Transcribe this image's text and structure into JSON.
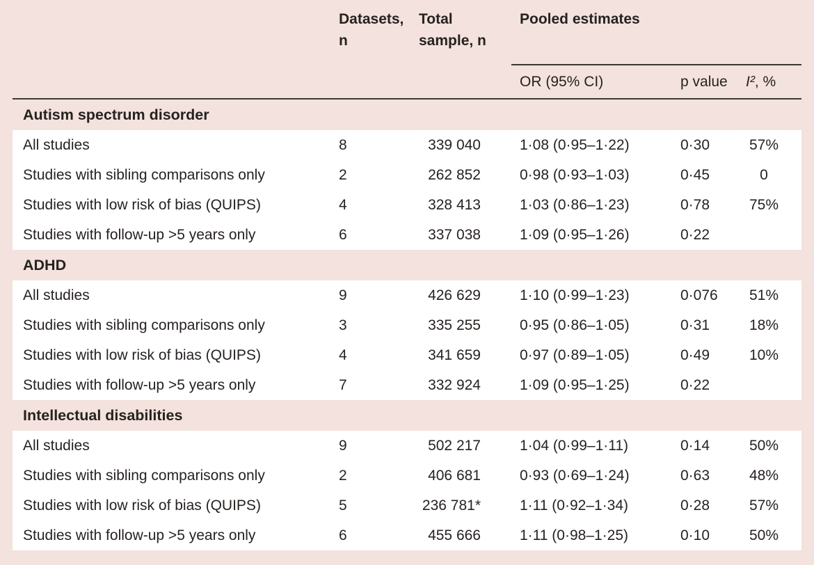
{
  "colors": {
    "page_background": "#f3e2dd",
    "row_background": "#ffffff",
    "text": "#262220",
    "rule": "#3b3734"
  },
  "header": {
    "datasets_label": "Datasets, n",
    "total_sample_label": "Total sample, n",
    "pooled_label": "Pooled estimates",
    "or_label": "OR (95% CI)",
    "p_label": "p value",
    "i2_label": "I²",
    "i2_suffix": ", %"
  },
  "table": {
    "sections": [
      {
        "title": "Autism spectrum disorder",
        "rows": [
          {
            "label": "All studies",
            "datasets": "8",
            "total": "339 040",
            "or": "1·08 (0·95–1·22)",
            "p": "0·30",
            "i2": "57%"
          },
          {
            "label": "Studies with sibling comparisons only",
            "datasets": "2",
            "total": "262 852",
            "or": "0·98 (0·93–1·03)",
            "p": "0·45",
            "i2": "0"
          },
          {
            "label": "Studies with low risk of bias (QUIPS)",
            "datasets": "4",
            "total": "328 413",
            "or": "1·03 (0·86–1·23)",
            "p": "0·78",
            "i2": "75%"
          },
          {
            "label": "Studies with follow-up >5 years only",
            "datasets": "6",
            "total": "337 038",
            "or": "1·09 (0·95–1·26)",
            "p": "0·22",
            "i2": ""
          }
        ]
      },
      {
        "title": "ADHD",
        "rows": [
          {
            "label": "All studies",
            "datasets": "9",
            "total": "426 629",
            "or": "1·10 (0·99–1·23)",
            "p": "0·076",
            "i2": "51%"
          },
          {
            "label": "Studies with sibling comparisons only",
            "datasets": "3",
            "total": "335 255",
            "or": "0·95 (0·86–1·05)",
            "p": "0·31",
            "i2": "18%"
          },
          {
            "label": "Studies with low risk of bias (QUIPS)",
            "datasets": "4",
            "total": "341 659",
            "or": "0·97 (0·89–1·05)",
            "p": "0·49",
            "i2": "10%"
          },
          {
            "label": "Studies with follow-up >5 years only",
            "datasets": "7",
            "total": "332 924",
            "or": "1·09 (0·95–1·25)",
            "p": "0·22",
            "i2": ""
          }
        ]
      },
      {
        "title": "Intellectual disabilities",
        "rows": [
          {
            "label": "All studies",
            "datasets": "9",
            "total": "502 217",
            "or": "1·04 (0·99–1·11)",
            "p": "0·14",
            "i2": "50%"
          },
          {
            "label": "Studies with sibling comparisons only",
            "datasets": "2",
            "total": "406 681",
            "or": "0·93 (0·69–1·24)",
            "p": "0·63",
            "i2": "48%"
          },
          {
            "label": "Studies with low risk of bias (QUIPS)",
            "datasets": "5",
            "total": "236 781*",
            "or": "1·11 (0·92–1·34)",
            "p": "0·28",
            "i2": "57%"
          },
          {
            "label": "Studies with follow-up >5 years only",
            "datasets": "6",
            "total": "455 666",
            "or": "1·11 (0·98–1·25)",
            "p": "0·10",
            "i2": "50%"
          }
        ]
      }
    ]
  }
}
